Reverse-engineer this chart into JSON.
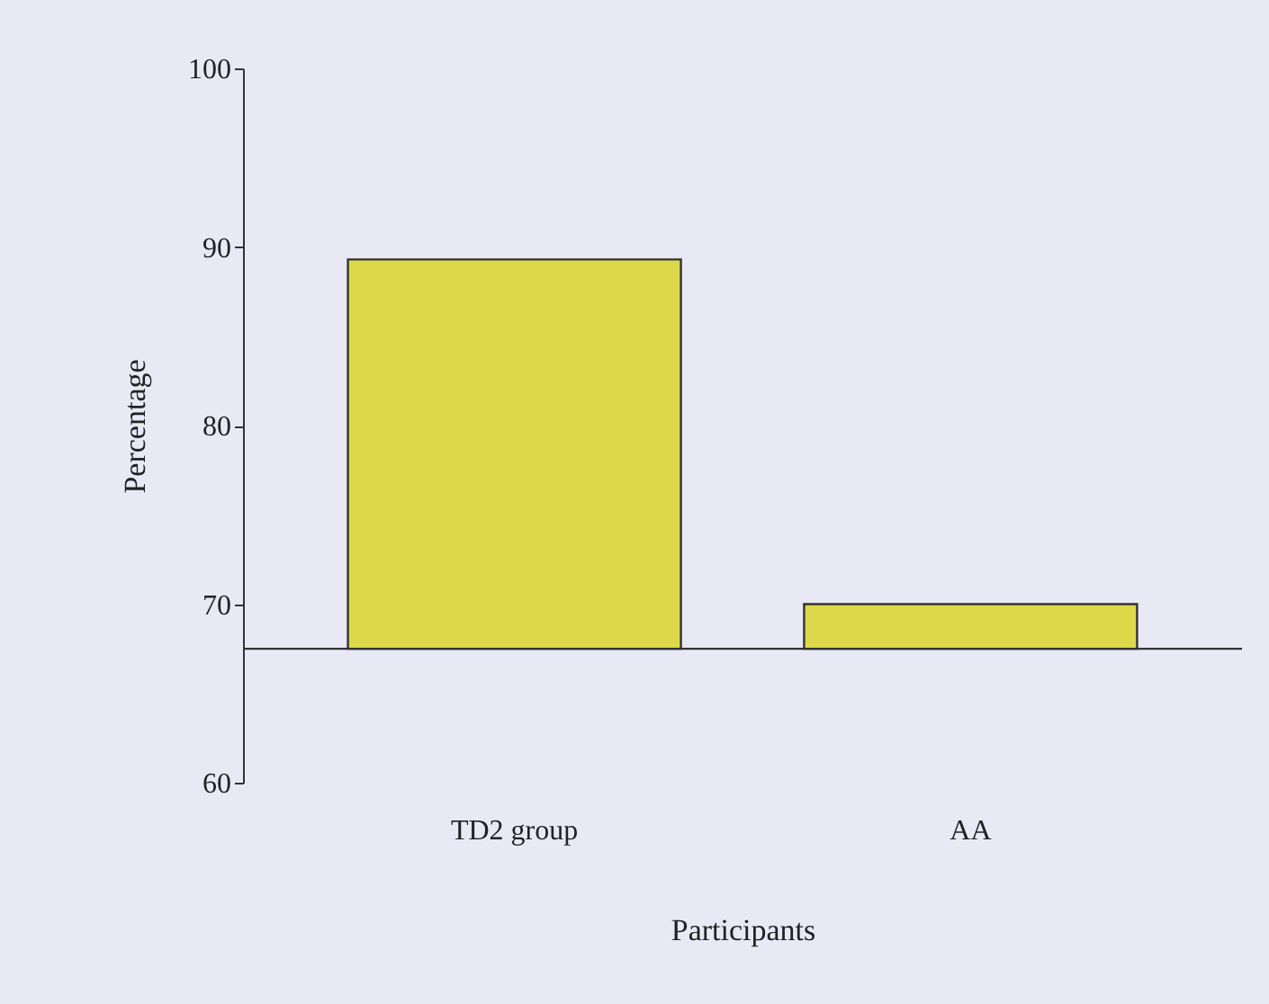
{
  "chart_data": {
    "type": "bar",
    "xlabel": "Participants",
    "ylabel": "Percentage",
    "categories": [
      "TD2 group",
      "AA"
    ],
    "values": [
      21.8,
      2.5
    ],
    "base": [
      67.5,
      67.5
    ],
    "color": "#ddd84a",
    "ylim": [
      60,
      100
    ],
    "yticks": [
      60,
      70,
      80,
      90,
      100
    ],
    "grid": false,
    "ref_lines": [
      {
        "axis": "y",
        "value": 67.5,
        "color": "#333333"
      }
    ]
  }
}
